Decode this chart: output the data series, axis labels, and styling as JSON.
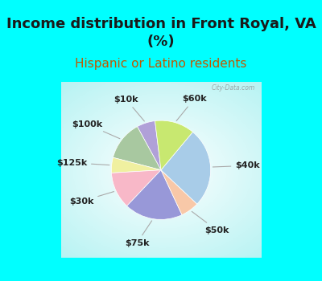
{
  "title": "Income distribution in Front Royal, VA\n(%)",
  "subtitle": "Hispanic or Latino residents",
  "labels": [
    "$10k",
    "$100k",
    "$125k",
    "$30k",
    "$75k",
    "$50k",
    "$40k",
    "$60k"
  ],
  "sizes": [
    6,
    13,
    5,
    12,
    19,
    6,
    26,
    13
  ],
  "colors": [
    "#b0a0d8",
    "#a8c8a0",
    "#f0f0a0",
    "#f8b8c8",
    "#9898d8",
    "#f8c8a8",
    "#a8cce8",
    "#c8e870"
  ],
  "background_cyan": "#00ffff",
  "title_color": "#1a1a1a",
  "subtitle_color": "#c05800",
  "title_fontsize": 13,
  "subtitle_fontsize": 11,
  "label_fontsize": 8,
  "startangle": 97
}
